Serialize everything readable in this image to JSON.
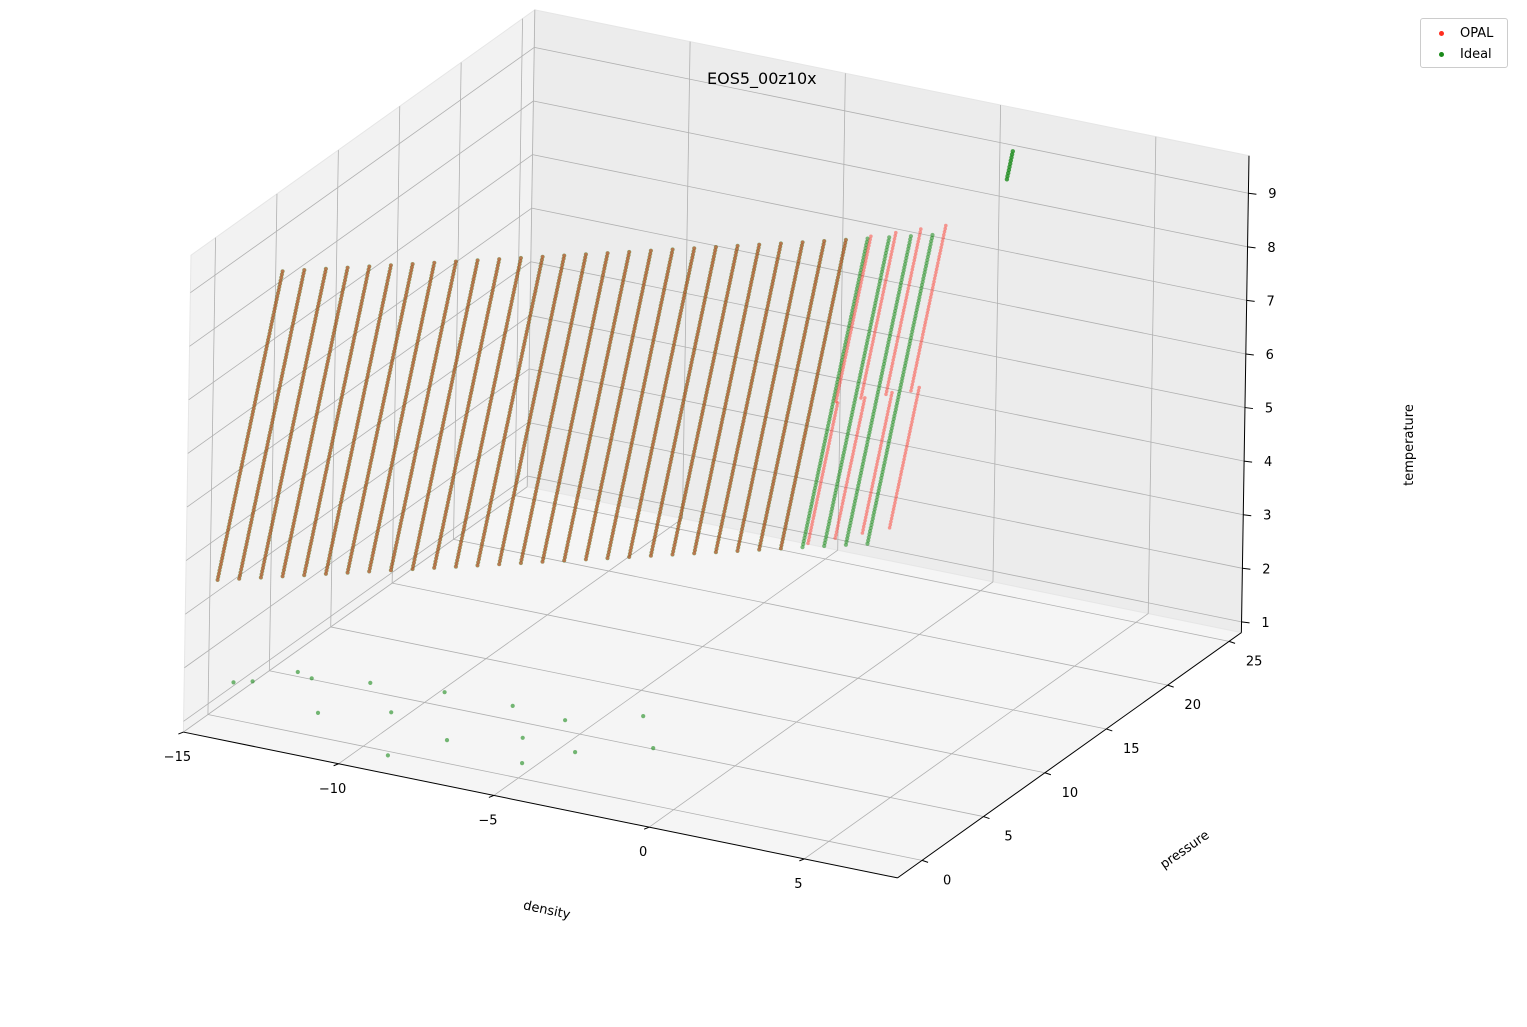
{
  "chart_data": {
    "type": "scatter",
    "title": "EOS5_00z10x",
    "xlabel": "density",
    "ylabel": "pressure",
    "zlabel": "temperature",
    "xlim": [
      -15,
      8
    ],
    "ylim": [
      -2,
      26
    ],
    "zlim": [
      0.8,
      9.7
    ],
    "xticks": [
      "−15",
      "−10",
      "−5",
      "0",
      "5"
    ],
    "yticks": [
      "0",
      "5",
      "10",
      "15",
      "20",
      "25"
    ],
    "zticks": [
      "1",
      "2",
      "3",
      "4",
      "5",
      "6",
      "7",
      "8",
      "9"
    ],
    "grid": true,
    "legend": "top-right",
    "series": [
      {
        "name": "OPAL",
        "color": "#ff2d1f",
        "description_points": "grid of log density from -14 to 1 and log temperature from 3.75 to 8.7; pressure rises with density and temperature",
        "sample_points": [
          {
            "density": -14,
            "pressure": 2.5,
            "temperature": 3.75
          },
          {
            "density": -14,
            "pressure": 7.5,
            "temperature": 8.7
          },
          {
            "density": -2,
            "pressure": 14.5,
            "temperature": 3.75
          },
          {
            "density": 0,
            "pressure": 18.2,
            "temperature": 5.0
          },
          {
            "density": 1,
            "pressure": 21.5,
            "temperature": 6.0
          },
          {
            "density": 1,
            "pressure": 23.5,
            "temperature": 8.7
          }
        ]
      },
      {
        "name": "Ideal",
        "color": "#1a8a1a",
        "description_points": "same grid using ideal gas law; diverges from OPAL at high density and extends to very low pressure at low temperature",
        "sample_points": [
          {
            "density": -14,
            "pressure": 2.5,
            "temperature": 3.75
          },
          {
            "density": -14,
            "pressure": 7.5,
            "temperature": 8.7
          },
          {
            "density": 1,
            "pressure": 24.5,
            "temperature": 9.2
          },
          {
            "density": -10,
            "pressure": -1.5,
            "temperature": 1.8
          }
        ]
      }
    ]
  },
  "legend": {
    "items": [
      {
        "label": "OPAL",
        "color": "#ff2d1f"
      },
      {
        "label": "Ideal",
        "color": "#1a8a1a"
      }
    ]
  }
}
